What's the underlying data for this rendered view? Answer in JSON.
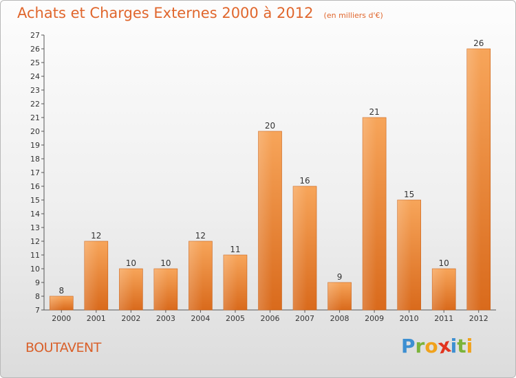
{
  "chart_data": {
    "type": "bar",
    "title": "Achats et Charges Externes 2000 à 2012",
    "subtitle": "(en milliers d'€)",
    "xlabel": "",
    "ylabel": "",
    "categories": [
      "2000",
      "2001",
      "2002",
      "2003",
      "2004",
      "2005",
      "2006",
      "2007",
      "2008",
      "2009",
      "2010",
      "2011",
      "2012"
    ],
    "values": [
      8,
      12,
      10,
      10,
      12,
      11,
      20,
      16,
      9,
      21,
      15,
      10,
      26
    ],
    "ylim": [
      7,
      27
    ],
    "yticks": [
      7,
      8,
      9,
      10,
      11,
      12,
      13,
      14,
      15,
      16,
      17,
      18,
      19,
      20,
      21,
      22,
      23,
      24,
      25,
      26,
      27
    ],
    "grid": false,
    "bar_color": "#ef8a35"
  },
  "footer": {
    "commune": "BOUTAVENT",
    "logo_letters": [
      {
        "char": "P",
        "color": "#3d8fd1"
      },
      {
        "char": "r",
        "color": "#7bb33a"
      },
      {
        "char": "o",
        "color": "#f0a21c"
      },
      {
        "char": "x",
        "color": "#e2341f"
      },
      {
        "char": "i",
        "color": "#3d8fd1"
      },
      {
        "char": "t",
        "color": "#7bb33a"
      },
      {
        "char": "i",
        "color": "#f0a21c"
      }
    ]
  }
}
